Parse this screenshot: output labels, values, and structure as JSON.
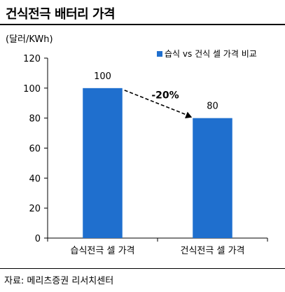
{
  "title": "건식전극 배터리 가격",
  "source": "자료: 메리츠증권 리서치센터",
  "chart_data": {
    "type": "bar",
    "categories": [
      "습식전극 셀 가격",
      "건식전극 셀 가격"
    ],
    "series": [
      {
        "name": "습식 vs 건식 셀 가격 비교",
        "values": [
          100,
          80
        ]
      }
    ],
    "data_labels": [
      "100",
      "80"
    ],
    "unit_label": "(달러/KWh)",
    "ylim": [
      0,
      120
    ],
    "yticks": [
      0,
      20,
      40,
      60,
      80,
      100,
      120
    ],
    "grid": false,
    "legend_position": "top-right",
    "annotation": {
      "text": "-20%",
      "from": "습식전극 셀 가격",
      "to": "건식전극 셀 가격",
      "style": "dashed-arrow"
    },
    "bar_color": "#1f6fce"
  }
}
